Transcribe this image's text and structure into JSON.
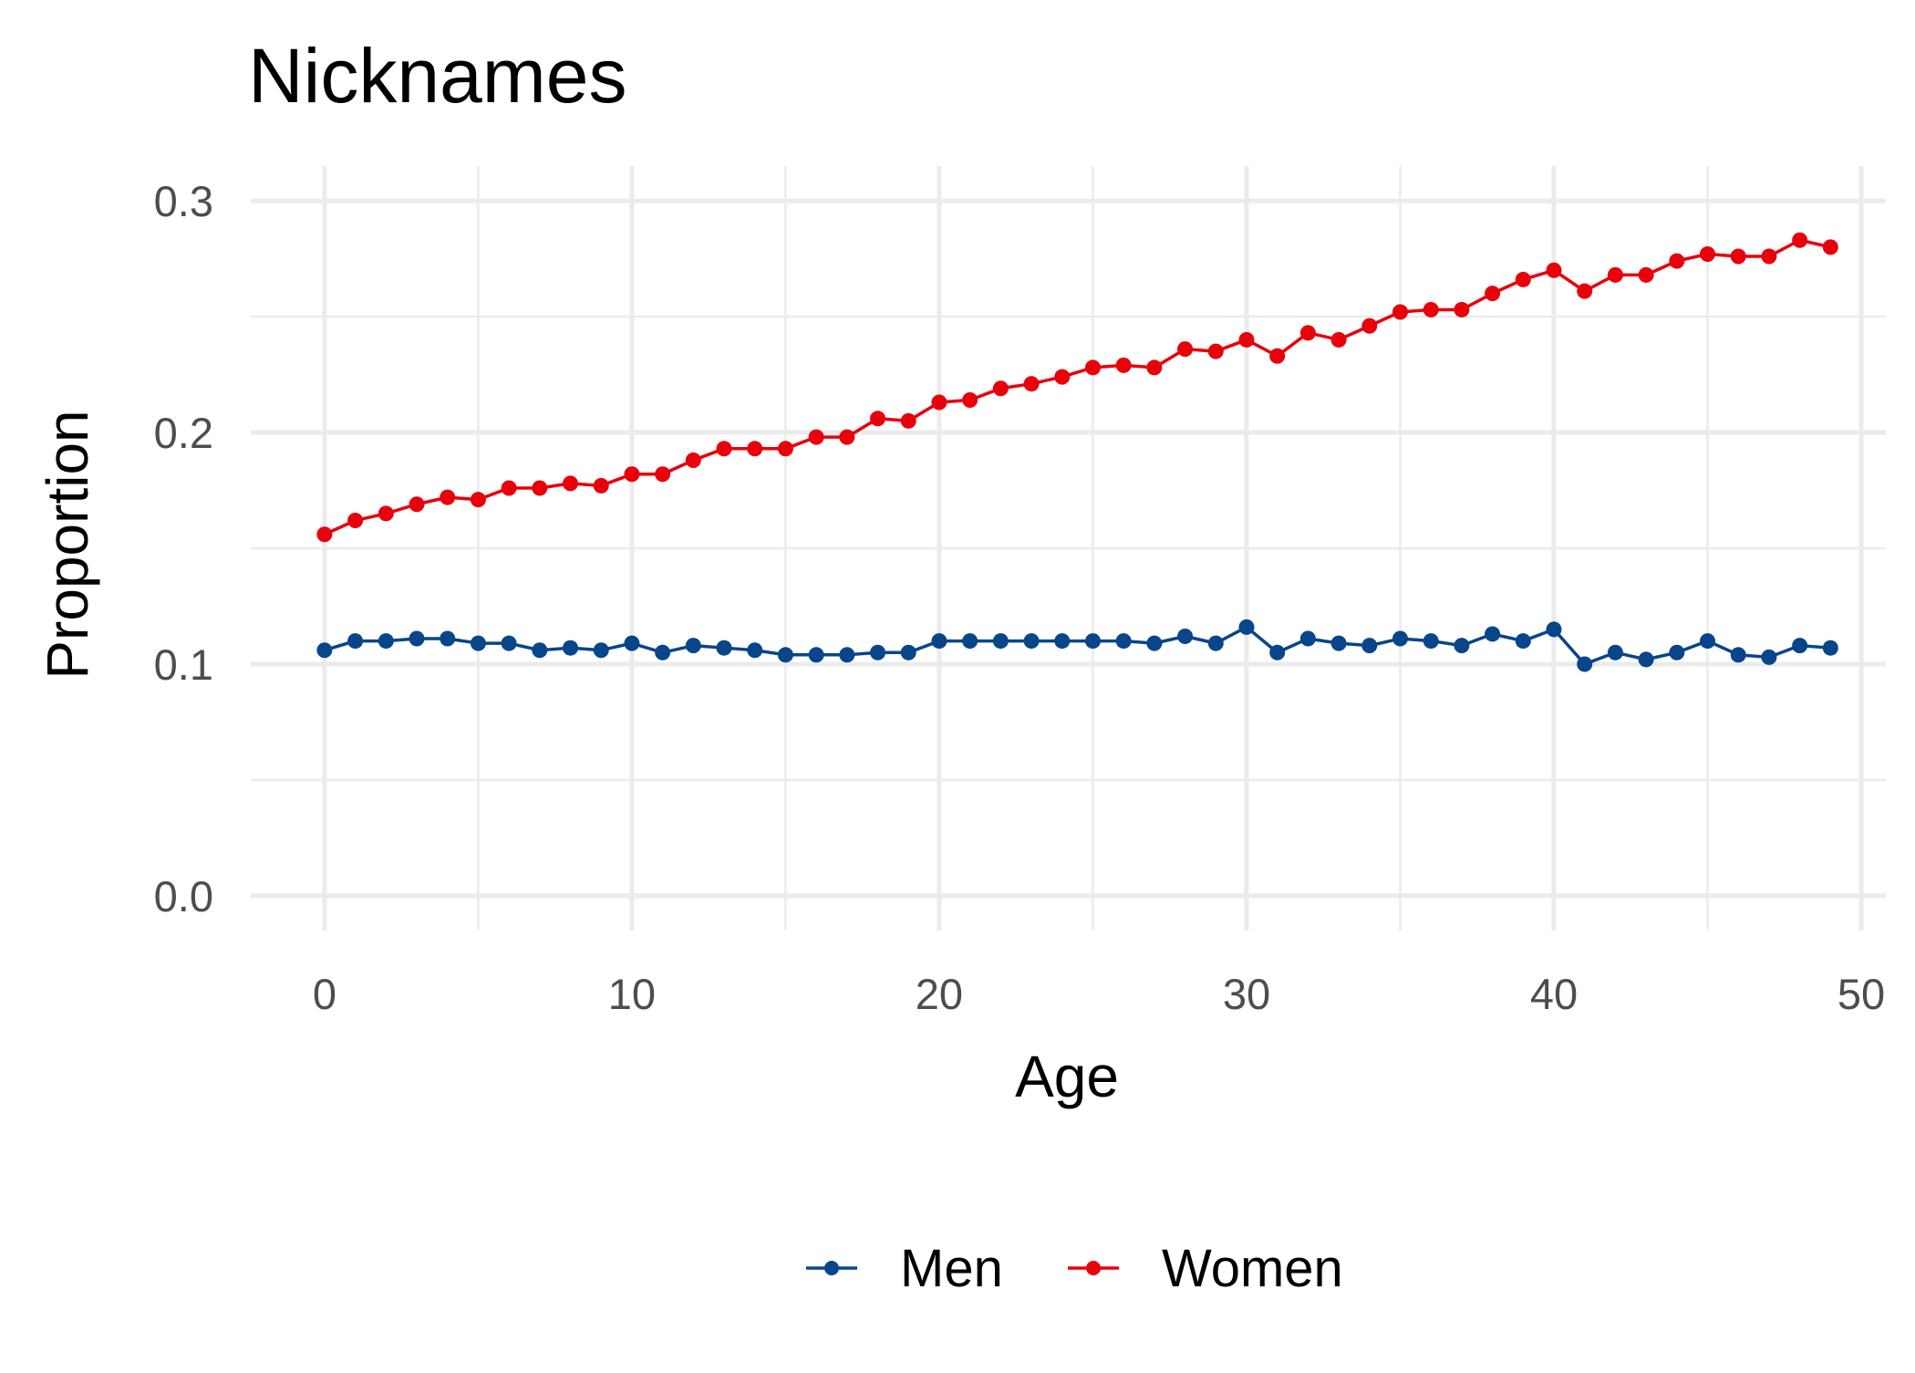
{
  "chart_data": {
    "type": "line",
    "title": "Nicknames",
    "xlabel": "Age",
    "ylabel": "Proportion",
    "xlim": [
      -2.4,
      50.8
    ],
    "ylim": [
      -0.015,
      0.315
    ],
    "x_ticks": [
      0,
      10,
      20,
      30,
      40,
      50
    ],
    "x_minor_ticks": [
      5,
      15,
      25,
      35,
      45
    ],
    "y_ticks": [
      0.0,
      0.1,
      0.2,
      0.3
    ],
    "y_tick_labels": [
      "0.0",
      "0.1",
      "0.2",
      "0.3"
    ],
    "y_minor_ticks": [
      0.05,
      0.15,
      0.25
    ],
    "grid": true,
    "legend_position": "bottom",
    "x": [
      0,
      1,
      2,
      3,
      4,
      5,
      6,
      7,
      8,
      9,
      10,
      11,
      12,
      13,
      14,
      15,
      16,
      17,
      18,
      19,
      20,
      21,
      22,
      23,
      24,
      25,
      26,
      27,
      28,
      29,
      30,
      31,
      32,
      33,
      34,
      35,
      36,
      37,
      38,
      39,
      40,
      41,
      42,
      43,
      44,
      45,
      46,
      47,
      48,
      49
    ],
    "series": [
      {
        "name": "Men",
        "color": "#08458a",
        "values": [
          0.106,
          0.11,
          0.11,
          0.111,
          0.111,
          0.109,
          0.109,
          0.106,
          0.107,
          0.106,
          0.109,
          0.105,
          0.108,
          0.107,
          0.106,
          0.104,
          0.104,
          0.104,
          0.105,
          0.105,
          0.11,
          0.11,
          0.11,
          0.11,
          0.11,
          0.11,
          0.11,
          0.109,
          0.112,
          0.109,
          0.116,
          0.105,
          0.111,
          0.109,
          0.108,
          0.111,
          0.11,
          0.108,
          0.113,
          0.11,
          0.115,
          0.1,
          0.105,
          0.102,
          0.105,
          0.11,
          0.104,
          0.103,
          0.108,
          0.107
        ]
      },
      {
        "name": "Women",
        "color": "#e8000b",
        "values": [
          0.156,
          0.162,
          0.165,
          0.169,
          0.172,
          0.171,
          0.176,
          0.176,
          0.178,
          0.177,
          0.182,
          0.182,
          0.188,
          0.193,
          0.193,
          0.193,
          0.198,
          0.198,
          0.206,
          0.205,
          0.213,
          0.214,
          0.219,
          0.221,
          0.224,
          0.228,
          0.229,
          0.228,
          0.236,
          0.235,
          0.24,
          0.233,
          0.243,
          0.24,
          0.246,
          0.252,
          0.253,
          0.253,
          0.26,
          0.266,
          0.27,
          0.261,
          0.268,
          0.268,
          0.274,
          0.277,
          0.276,
          0.276,
          0.283,
          0.28
        ]
      }
    ]
  }
}
